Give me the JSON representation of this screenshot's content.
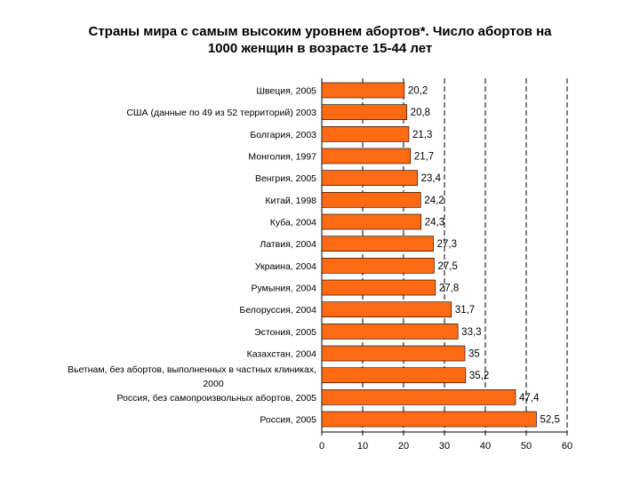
{
  "chart_data": {
    "type": "bar",
    "orientation": "horizontal",
    "title_lines": [
      "Страны мира с самым высоким уровнем абортов*. Число абортов на",
      "1000 женщин в возрасте 15-44 лет"
    ],
    "categories": [
      [
        "Швеция, 2005"
      ],
      [
        "США (данные по 49 из 52 территорий) 2003"
      ],
      [
        "Болгария, 2003"
      ],
      [
        "Монголия, 1997"
      ],
      [
        "Венгрия, 2005"
      ],
      [
        "Китай, 1998"
      ],
      [
        "Куба, 2004"
      ],
      [
        "Латвия, 2004"
      ],
      [
        "Украина, 2004"
      ],
      [
        "Румыния, 2004"
      ],
      [
        "Белоруссия, 2004"
      ],
      [
        "Эстония, 2005"
      ],
      [
        "Казахстан, 2004"
      ],
      [
        "Вьетнам, без абортов, выполненных в частных клиниках,",
        "2000"
      ],
      [
        "Россия, без самопроизвольных абортов, 2005"
      ],
      [
        "Россия, 2005"
      ]
    ],
    "values": [
      20.2,
      20.8,
      21.3,
      21.7,
      23.4,
      24.2,
      24.3,
      27.3,
      27.5,
      27.8,
      31.7,
      33.3,
      35,
      35.2,
      47.4,
      52.5
    ],
    "value_labels": [
      "20,2",
      "20,8",
      "21,3",
      "21,7",
      "23,4",
      "24,2",
      "24,3",
      "27,3",
      "27,5",
      "27,8",
      "31,7",
      "33,3",
      "35",
      "35,2",
      "47,4",
      "52,5"
    ],
    "xlim": [
      0,
      60
    ],
    "xticks": [
      0,
      10,
      20,
      30,
      40,
      50,
      60
    ],
    "grid": "dashed vertical",
    "xlabel": "",
    "ylabel": "",
    "legend": "none"
  },
  "colors": {
    "bar_fill": "#ff6a13",
    "bar_stroke": "#000000",
    "grid": "#000000",
    "text": "#000000"
  }
}
